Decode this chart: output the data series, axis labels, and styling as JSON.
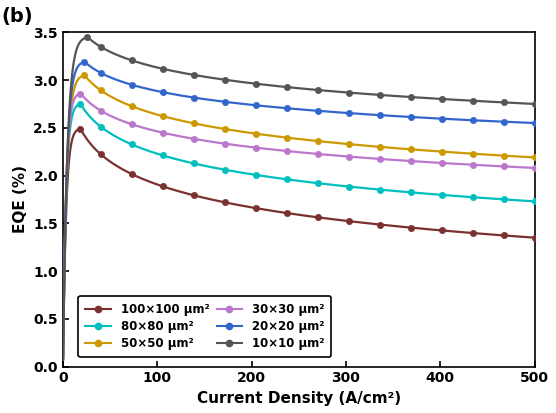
{
  "title": "(b)",
  "xlabel": "Current Density (A/cm²)",
  "ylabel": "EQE (%)",
  "xlim": [
    0,
    500
  ],
  "ylim": [
    0.0,
    3.5
  ],
  "yticks": [
    0.0,
    0.5,
    1.0,
    1.5,
    2.0,
    2.5,
    3.0,
    3.5
  ],
  "xticks": [
    0,
    100,
    200,
    300,
    400,
    500
  ],
  "series": [
    {
      "label": "100×100 μm²",
      "color": "#7B3030",
      "peak_x": 18,
      "peak_y": 2.5,
      "start_y": 0.0,
      "end_y": 1.35,
      "droop_slow": false
    },
    {
      "label": "80×80 μm²",
      "color": "#00BFBF",
      "peak_x": 18,
      "peak_y": 2.76,
      "start_y": 0.0,
      "end_y": 1.73,
      "droop_slow": true
    },
    {
      "label": "50×50 μm²",
      "color": "#CC9900",
      "peak_x": 22,
      "peak_y": 3.06,
      "start_y": 0.0,
      "end_y": 2.19,
      "droop_slow": true
    },
    {
      "label": "30×30 μm²",
      "color": "#BB77CC",
      "peak_x": 18,
      "peak_y": 2.87,
      "start_y": 0.0,
      "end_y": 2.08,
      "droop_slow": true
    },
    {
      "label": "20×20 μm²",
      "color": "#3366CC",
      "peak_x": 22,
      "peak_y": 3.2,
      "start_y": 0.0,
      "end_y": 2.55,
      "droop_slow": true
    },
    {
      "label": "10×10 μm²",
      "color": "#555555",
      "peak_x": 25,
      "peak_y": 3.46,
      "start_y": 0.0,
      "end_y": 2.75,
      "droop_slow": true
    }
  ],
  "legend_col1": [
    0,
    2,
    4
  ],
  "legend_col2": [
    1,
    3,
    5
  ],
  "figsize": [
    5.56,
    4.13
  ],
  "dpi": 100
}
